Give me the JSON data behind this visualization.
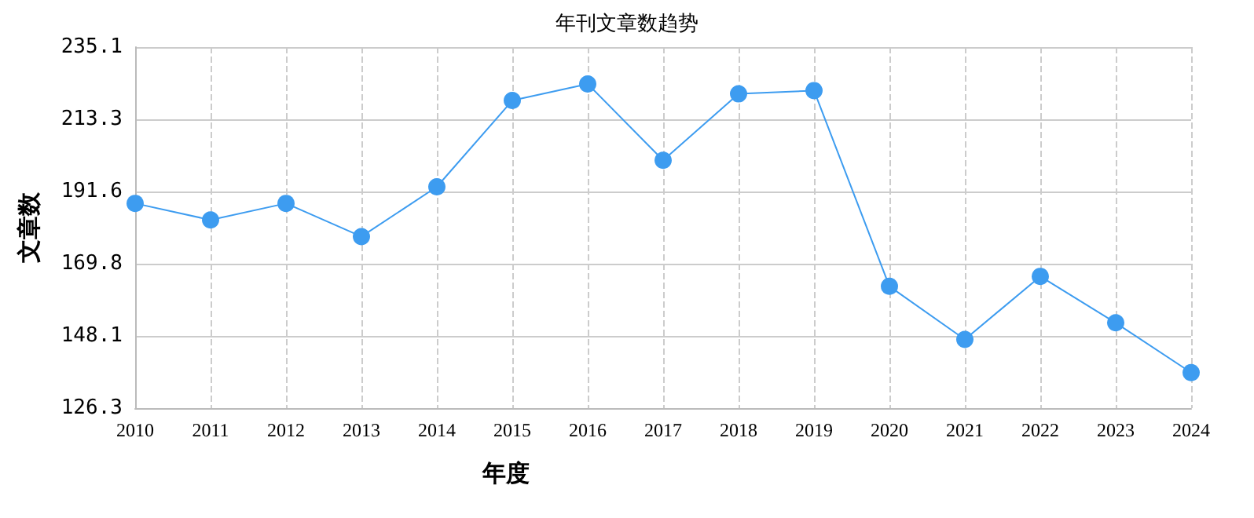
{
  "chart_data": {
    "type": "line",
    "title": "年刊文章数趋势",
    "xlabel": "年度",
    "ylabel": "文章数",
    "categories": [
      "2010",
      "2011",
      "2012",
      "2013",
      "2014",
      "2015",
      "2016",
      "2017",
      "2018",
      "2019",
      "2020",
      "2021",
      "2022",
      "2023",
      "2024"
    ],
    "series": [
      {
        "color": "#3d9cf0",
        "values": [
          188,
          183,
          188,
          178,
          193,
          219,
          224,
          201,
          221,
          222,
          163,
          147,
          166,
          152,
          137
        ]
      }
    ],
    "ylim": [
      126.3,
      235.1
    ],
    "yticks": [
      126.3,
      148.1,
      169.8,
      191.6,
      213.3,
      235.1
    ],
    "grid": true,
    "marker": "circle",
    "line_style": "solid"
  }
}
